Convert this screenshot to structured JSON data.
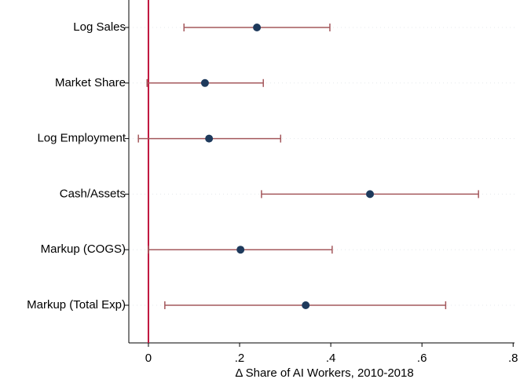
{
  "chart_data": {
    "type": "coefplot",
    "x_label": "Δ Share of AI Workers, 2010-2018",
    "categories": [
      "Log Sales",
      "Market Share",
      "Log Employment",
      "Cash/Assets",
      "Markup (COGS)",
      "Markup (Total Exp)"
    ],
    "values": [
      0.238,
      0.124,
      0.133,
      0.486,
      0.202,
      0.345
    ],
    "lower": [
      0.078,
      -0.003,
      -0.022,
      0.248,
      0.0,
      0.036
    ],
    "upper": [
      0.398,
      0.252,
      0.29,
      0.724,
      0.403,
      0.652
    ],
    "color": "#1e3a5c",
    "ci_color": "#a4585c",
    "reference_line": 0,
    "reference_color": "#c0143c",
    "xlim": [
      -0.043,
      0.803
    ],
    "xticks": [
      0,
      {
        "value": 0.2,
        "label": ".2"
      },
      {
        "value": 0.4,
        "label": ".4"
      },
      {
        "value": 0.6,
        "label": ".6"
      },
      {
        "value": 0.8,
        "label": ".8"
      }
    ],
    "grid": true
  }
}
